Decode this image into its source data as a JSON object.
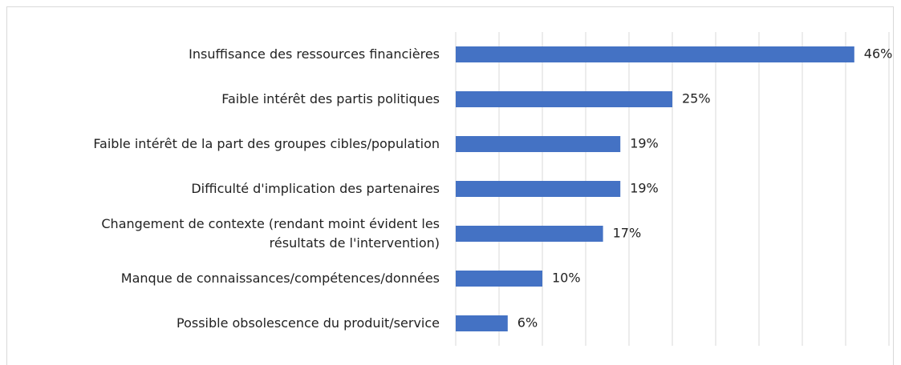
{
  "chart_data": {
    "type": "barh",
    "categories": [
      "Insuffisance des ressources financières",
      "Faible intérêt des partis politiques",
      "Faible intérêt de la part des groupes cibles/population",
      "Difficulté d'implication des partenaires",
      "Changement de contexte (rendant moint évident les\nrésultats de l'intervention)",
      "Manque de connaissances/compétences/données",
      "Possible obsolescence du produit/service"
    ],
    "values": [
      46,
      25,
      19,
      19,
      17,
      10,
      6
    ],
    "value_labels": [
      "46%",
      "25%",
      "19%",
      "19%",
      "17%",
      "10%",
      "6%"
    ],
    "color": "#4472c4",
    "xlim": [
      0,
      50
    ],
    "xticks": [
      0,
      5,
      10,
      15,
      20,
      25,
      30,
      35,
      40,
      45,
      50
    ],
    "grid": true
  }
}
